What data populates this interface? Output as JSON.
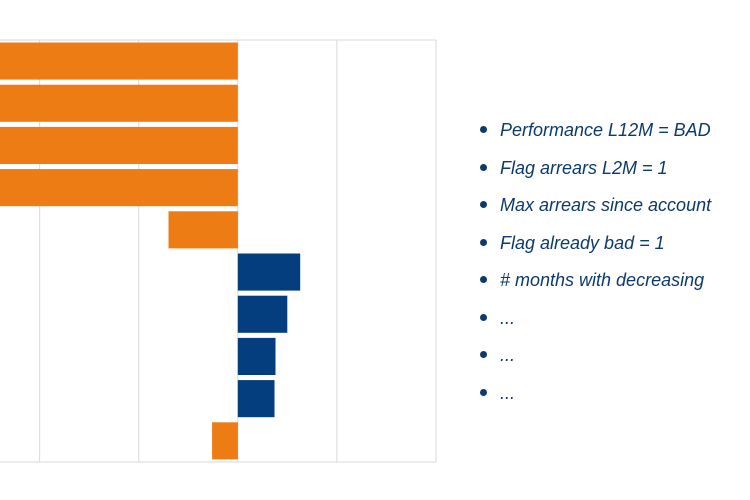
{
  "colors": {
    "negative": "#EE7C14",
    "positive": "#043E7E",
    "grid": "#D9D9D9",
    "text": "#0B3A6E"
  },
  "chart_data": {
    "type": "bar",
    "orientation": "horizontal",
    "categories": [
      "",
      "",
      "",
      "",
      "",
      "",
      "",
      "",
      "",
      ""
    ],
    "values": [
      -2.4,
      -2.4,
      -2.4,
      -2.4,
      -0.7,
      0.63,
      0.5,
      0.38,
      0.37,
      -0.26
    ],
    "xlim": [
      -2.4,
      2.0
    ],
    "grid": true,
    "title": "",
    "xlabel": "",
    "ylabel": ""
  },
  "bullets": [
    "Performance L12M = BAD",
    "Flag arrears L2M = 1",
    "Max arrears since account",
    "Flag already bad = 1",
    "# months with decreasing",
    "...",
    "...",
    "..."
  ]
}
